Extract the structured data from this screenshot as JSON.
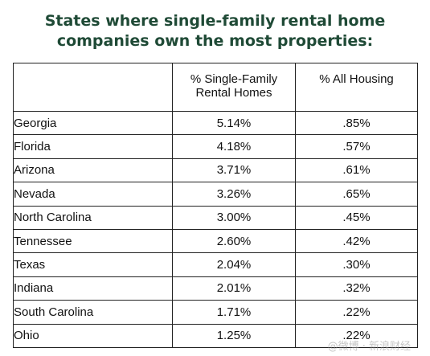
{
  "title": {
    "line1": "States where single-family rental home",
    "line2": "companies own the most properties:"
  },
  "table": {
    "headers": [
      "",
      "% Single-Family\nRental Homes",
      "% All Housing"
    ],
    "header_col2_line1": "% Single-Family",
    "header_col2_line2": "Rental Homes",
    "header_col3": "% All Housing",
    "rows": [
      {
        "state": "Georgia",
        "sfr": "5.14%",
        "all": ".85%"
      },
      {
        "state": "Florida",
        "sfr": "4.18%",
        "all": ".57%"
      },
      {
        "state": "Arizona",
        "sfr": "3.71%",
        "all": ".61%"
      },
      {
        "state": "Nevada",
        "sfr": "3.26%",
        "all": ".65%"
      },
      {
        "state": "North Carolina",
        "sfr": "3.00%",
        "all": ".45%"
      },
      {
        "state": "Tennessee",
        "sfr": "2.60%",
        "all": ".42%"
      },
      {
        "state": "Texas",
        "sfr": "2.04%",
        "all": ".30%"
      },
      {
        "state": "Indiana",
        "sfr": "2.01%",
        "all": ".32%"
      },
      {
        "state": "South Carolina",
        "sfr": "1.71%",
        "all": ".22%"
      },
      {
        "state": "Ohio",
        "sfr": "1.25%",
        "all": ".22%"
      }
    ]
  },
  "watermark": "@微博 · 新浪财经",
  "colors": {
    "title": "#1f4a36",
    "border": "#222222",
    "text": "#111111"
  }
}
